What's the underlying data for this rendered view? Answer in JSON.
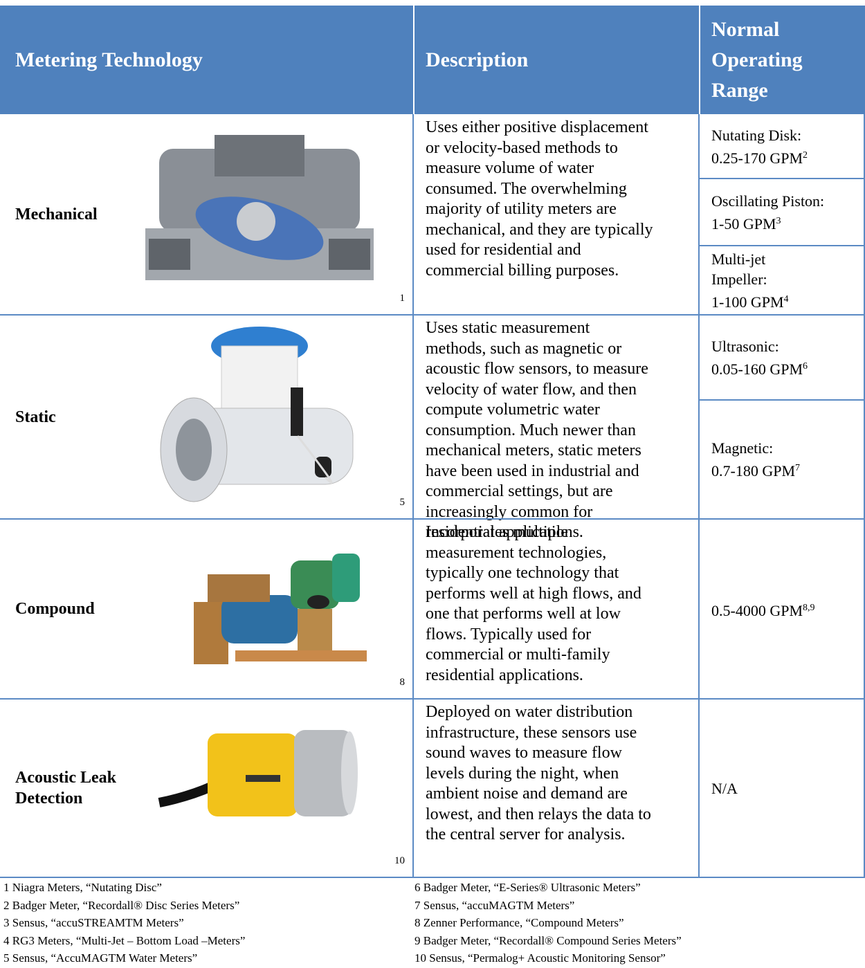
{
  "header": {
    "technology": "Metering Technology",
    "description": "Description",
    "range": [
      "Normal",
      "Operating",
      "Range"
    ]
  },
  "rows": [
    {
      "technology": [
        "Mechanical"
      ],
      "image_ref": "1",
      "description": [
        "Uses either positive displacement",
        "or velocity-based methods to",
        "measure volume of water",
        "consumed. The overwhelming",
        "majority of utility meters are",
        "mechanical, and they are typically",
        "used for residential and",
        "commercial billing purposes."
      ],
      "ranges": [
        {
          "lines": [
            "Nutating Disk:",
            "0.25-170 GPM"
          ],
          "sup": "2"
        },
        {
          "lines": [
            "Oscillating Piston:",
            "1-50 GPM"
          ],
          "sup": "3"
        },
        {
          "lines": [
            "Multi-jet",
            "Impeller:",
            "1-100 GPM"
          ],
          "sup": "4"
        }
      ]
    },
    {
      "technology": [
        "Static"
      ],
      "image_ref": "5",
      "description": [
        "Uses static measurement",
        "methods, such as magnetic or",
        "acoustic flow sensors, to measure",
        "velocity of water flow, and then",
        "compute volumetric water",
        "consumption. Much newer than",
        "mechanical meters, static meters",
        "have been used in industrial and",
        "commercial settings, but are",
        "increasingly common for",
        "residential applications."
      ],
      "ranges": [
        {
          "lines": [
            "Ultrasonic:",
            "0.05-160 GPM"
          ],
          "sup": "6"
        },
        {
          "lines": [
            "Magnetic:",
            "0.7-180 GPM"
          ],
          "sup": "7"
        }
      ]
    },
    {
      "technology": [
        "Compound"
      ],
      "image_ref": "8",
      "description": [
        "Incorporates multiple",
        "measurement technologies,",
        "typically one technology that",
        "performs well at high flows, and",
        "one that performs well at low",
        "flows. Typically used for",
        "commercial or multi-family",
        "residential applications."
      ],
      "ranges": [
        {
          "lines": [
            "0.5-4000 GPM"
          ],
          "sup": "8,9"
        }
      ]
    },
    {
      "technology": [
        "Acoustic Leak",
        "Detection"
      ],
      "image_ref": "10",
      "description": [
        "Deployed on water distribution",
        "infrastructure, these sensors use",
        "sound waves to measure flow",
        "levels during the night, when",
        "ambient noise and demand are",
        "lowest, and then relays the data to",
        "the central server for analysis."
      ],
      "ranges": [
        {
          "lines": [
            "N/A"
          ]
        }
      ]
    }
  ],
  "footnotes": {
    "left": [
      "1 Niagra Meters, “Nutating Disc”",
      "2 Badger Meter, “Recordall® Disc Series Meters”",
      "3 Sensus, “accuSTREAMTM Meters”",
      "4 RG3 Meters, “Multi-Jet – Bottom Load –Meters”",
      "5 Sensus, “AccuMAGTM Water Meters”"
    ],
    "right": [
      "6 Badger Meter, “E-Series® Ultrasonic Meters”",
      "7 Sensus, “accuMAGTM Meters”",
      "8 Zenner Performance, “Compound Meters”",
      "9 Badger Meter, “Recordall® Compound Series Meters”",
      "10 Sensus, “Permalog+ Acoustic Monitoring Sensor”"
    ]
  }
}
